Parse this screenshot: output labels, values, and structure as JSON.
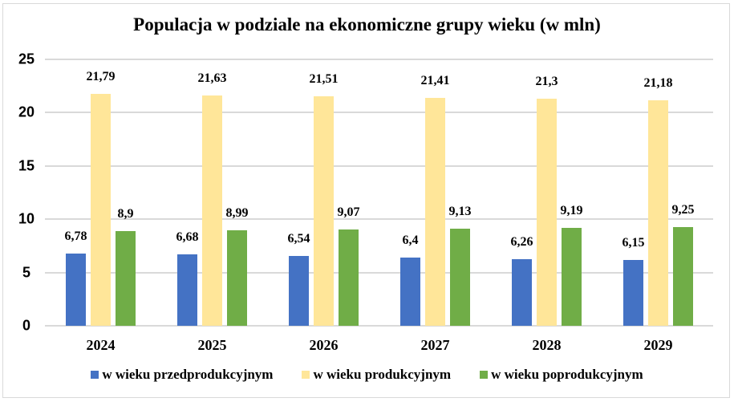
{
  "chart_data": {
    "type": "bar",
    "title": "Populacja w podziale na ekonomiczne grupy wieku (w mln)",
    "xlabel": "",
    "ylabel": "",
    "categories": [
      "2024",
      "2025",
      "2026",
      "2027",
      "2028",
      "2029"
    ],
    "series": [
      {
        "name": "w wieku przedprodukcyjnym",
        "color": "#4472C4",
        "values": [
          6.78,
          6.68,
          6.54,
          6.4,
          6.26,
          6.15
        ],
        "labels": [
          "6,78",
          "6,68",
          "6,54",
          "6,4",
          "6,26",
          "6,15"
        ]
      },
      {
        "name": "w wieku produkcyjnym",
        "color": "#FFE699",
        "values": [
          21.79,
          21.63,
          21.51,
          21.41,
          21.3,
          21.18
        ],
        "labels": [
          "21,79",
          "21,63",
          "21,51",
          "21,41",
          "21,3",
          "21,18"
        ]
      },
      {
        "name": "w wieku poprodukcyjnym",
        "color": "#70AD47",
        "values": [
          8.9,
          8.99,
          9.07,
          9.13,
          9.19,
          9.25
        ],
        "labels": [
          "8,9",
          "8,99",
          "9,07",
          "9,13",
          "9,19",
          "9,25"
        ]
      }
    ],
    "ylim": [
      0,
      25
    ],
    "yticks": [
      "0",
      "5",
      "10",
      "15",
      "20",
      "25"
    ],
    "grid": true,
    "legend_position": "bottom"
  }
}
